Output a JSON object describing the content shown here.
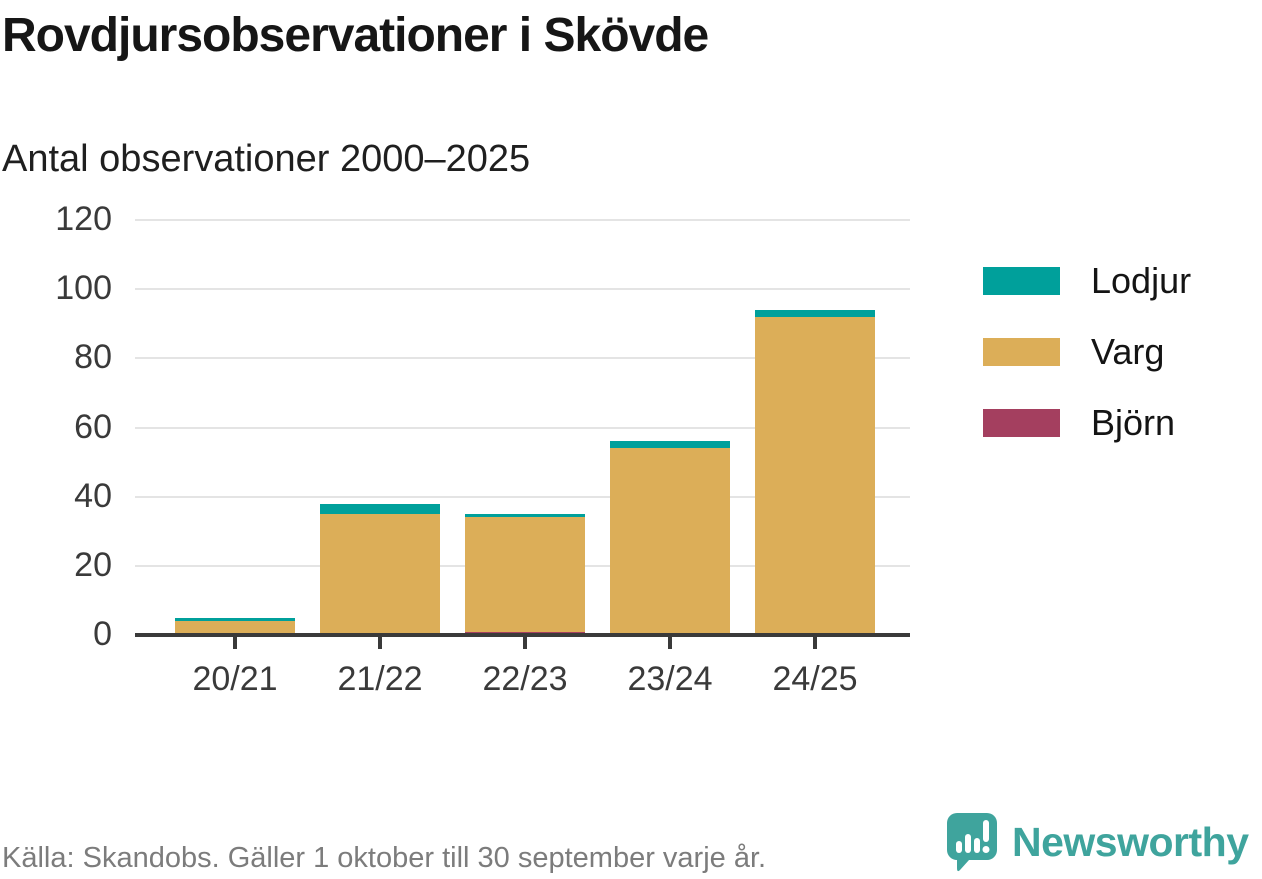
{
  "header": {
    "title": "Rovdjursobservationer i Skövde",
    "subtitle": "Antal observationer 2000–2025"
  },
  "chart_data": {
    "type": "bar",
    "stacked": true,
    "title": "Rovdjursobservationer i Skövde",
    "subtitle": "Antal observationer 2000–2025",
    "categories": [
      "20/21",
      "21/22",
      "22/23",
      "23/24",
      "24/25"
    ],
    "series": [
      {
        "name": "Björn",
        "color": "#a43f5f",
        "values": [
          0,
          0,
          1,
          0,
          0
        ]
      },
      {
        "name": "Varg",
        "color": "#dcae58",
        "values": [
          4,
          35,
          33,
          54,
          92
        ]
      },
      {
        "name": "Lodjur",
        "color": "#00a09b",
        "values": [
          1,
          3,
          1,
          2,
          2
        ]
      }
    ],
    "stack_totals": [
      5,
      38,
      35,
      56,
      94
    ],
    "xlabel": "",
    "ylabel": "",
    "ylim": [
      0,
      120
    ],
    "yticks": [
      0,
      20,
      40,
      60,
      80,
      100,
      120
    ],
    "grid": true,
    "legend_position": "right",
    "legend_order": [
      "Lodjur",
      "Varg",
      "Björn"
    ]
  },
  "legend": {
    "items": [
      {
        "label": "Lodjur",
        "color": "#00a09b"
      },
      {
        "label": "Varg",
        "color": "#dcae58"
      },
      {
        "label": "Björn",
        "color": "#a43f5f"
      }
    ]
  },
  "footer": {
    "source": "Källa: Skandobs. Gäller 1 oktober till 30 september varje år.",
    "brand_name": "Newsworthy"
  },
  "colors": {
    "lodjur": "#00a09b",
    "varg": "#dcae58",
    "bjorn": "#a43f5f",
    "axis": "#3a3a3a",
    "gridline": "#e4e4e4",
    "source_text": "#7c7c7c",
    "brand_teal": "#3fa49d"
  }
}
